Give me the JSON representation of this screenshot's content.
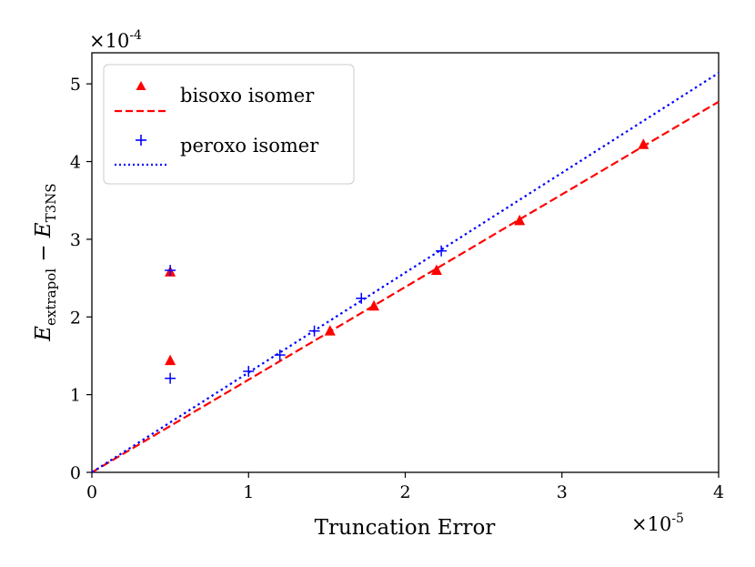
{
  "chart_data": {
    "type": "scatter",
    "xlabel": "Truncation Error",
    "ylabel": {
      "symbol": "E",
      "sub1": "extrapol",
      "minus": " − ",
      "sub2": "T3NS"
    },
    "x_multiplier": {
      "base": "×10",
      "exp": "-5"
    },
    "y_multiplier": {
      "base": "×10",
      "exp": "-4"
    },
    "xlim": [
      0,
      4
    ],
    "ylim": [
      0,
      5.4
    ],
    "x_ticks": [
      "0",
      "1",
      "2",
      "3",
      "4"
    ],
    "y_ticks": [
      "0",
      "1",
      "2",
      "3",
      "4",
      "5"
    ],
    "x_tick_values": [
      0,
      1,
      2,
      3,
      4
    ],
    "y_tick_values": [
      0,
      1,
      2,
      3,
      4,
      5
    ],
    "grid": false,
    "legend_position": "upper-left",
    "series": [
      {
        "name": "bisoxo isomer",
        "kind": "markers",
        "marker": "triangle",
        "color": "#ff0000",
        "points": [
          [
            0.5,
            2.58
          ],
          [
            0.5,
            1.44
          ],
          [
            1.52,
            1.82
          ],
          [
            1.8,
            2.14
          ],
          [
            2.2,
            2.6
          ],
          [
            2.73,
            3.24
          ],
          [
            3.52,
            4.22
          ]
        ]
      },
      {
        "name": "bisoxo isomer fit",
        "kind": "line",
        "dash": "dashed",
        "color": "#ff0000",
        "points": [
          [
            0,
            0
          ],
          [
            4,
            4.77
          ]
        ]
      },
      {
        "name": "peroxo isomer",
        "kind": "markers",
        "marker": "plus",
        "color": "#0000ff",
        "points": [
          [
            0.5,
            2.6
          ],
          [
            0.5,
            1.21
          ],
          [
            1.0,
            1.3
          ],
          [
            1.2,
            1.51
          ],
          [
            1.42,
            1.82
          ],
          [
            1.72,
            2.24
          ],
          [
            2.23,
            2.85
          ]
        ]
      },
      {
        "name": "peroxo isomer fit",
        "kind": "line",
        "dash": "dotted",
        "color": "#0000ff",
        "points": [
          [
            0,
            0
          ],
          [
            4,
            5.14
          ]
        ]
      }
    ],
    "legend_entries": [
      "bisoxo isomer",
      "peroxo isomer"
    ]
  }
}
